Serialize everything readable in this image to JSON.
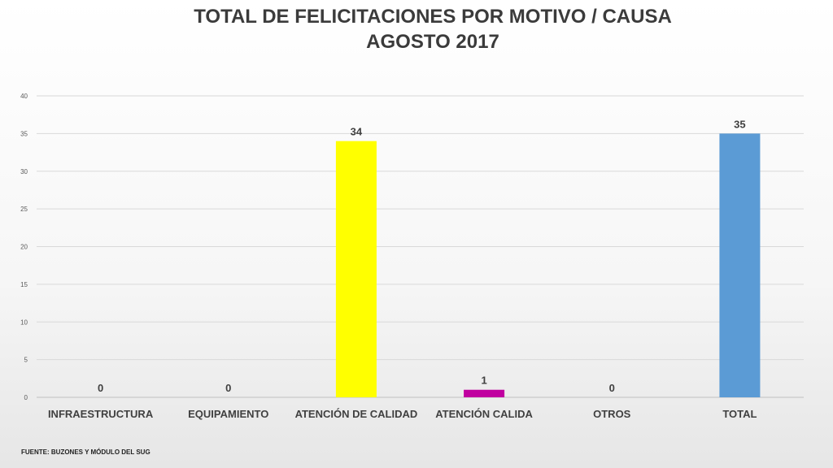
{
  "title_line1": "TOTAL DE FELICITACIONES POR MOTIVO / CAUSA",
  "title_line2": "AGOSTO 2017",
  "source": "FUENTE: BUZONES Y MÓDULO DEL SUG",
  "colors": {
    "INFRAESTRUCTURA": "#1f4e79",
    "EQUIPAMIENTO": "#2e75b6",
    "ATENCIÓN DE CALIDAD": "#ffff00",
    "ATENCIÓN CALIDA": "#c000a0",
    "OTROS": "#7f7f7f",
    "TOTAL": "#5b9bd5"
  },
  "chart_data": {
    "type": "bar",
    "title": "TOTAL DE FELICITACIONES POR MOTIVO / CAUSA AGOSTO 2017",
    "categories": [
      "INFRAESTRUCTURA",
      "EQUIPAMIENTO",
      "ATENCIÓN DE CALIDAD",
      "ATENCIÓN CALIDA",
      "OTROS",
      "TOTAL"
    ],
    "values": [
      0,
      0,
      34,
      1,
      0,
      35
    ],
    "ylim": [
      0,
      40
    ],
    "yticks": [
      0,
      5,
      10,
      15,
      20,
      25,
      30,
      35,
      40
    ],
    "grid": true,
    "legend": "none",
    "xlabel": "",
    "ylabel": ""
  }
}
